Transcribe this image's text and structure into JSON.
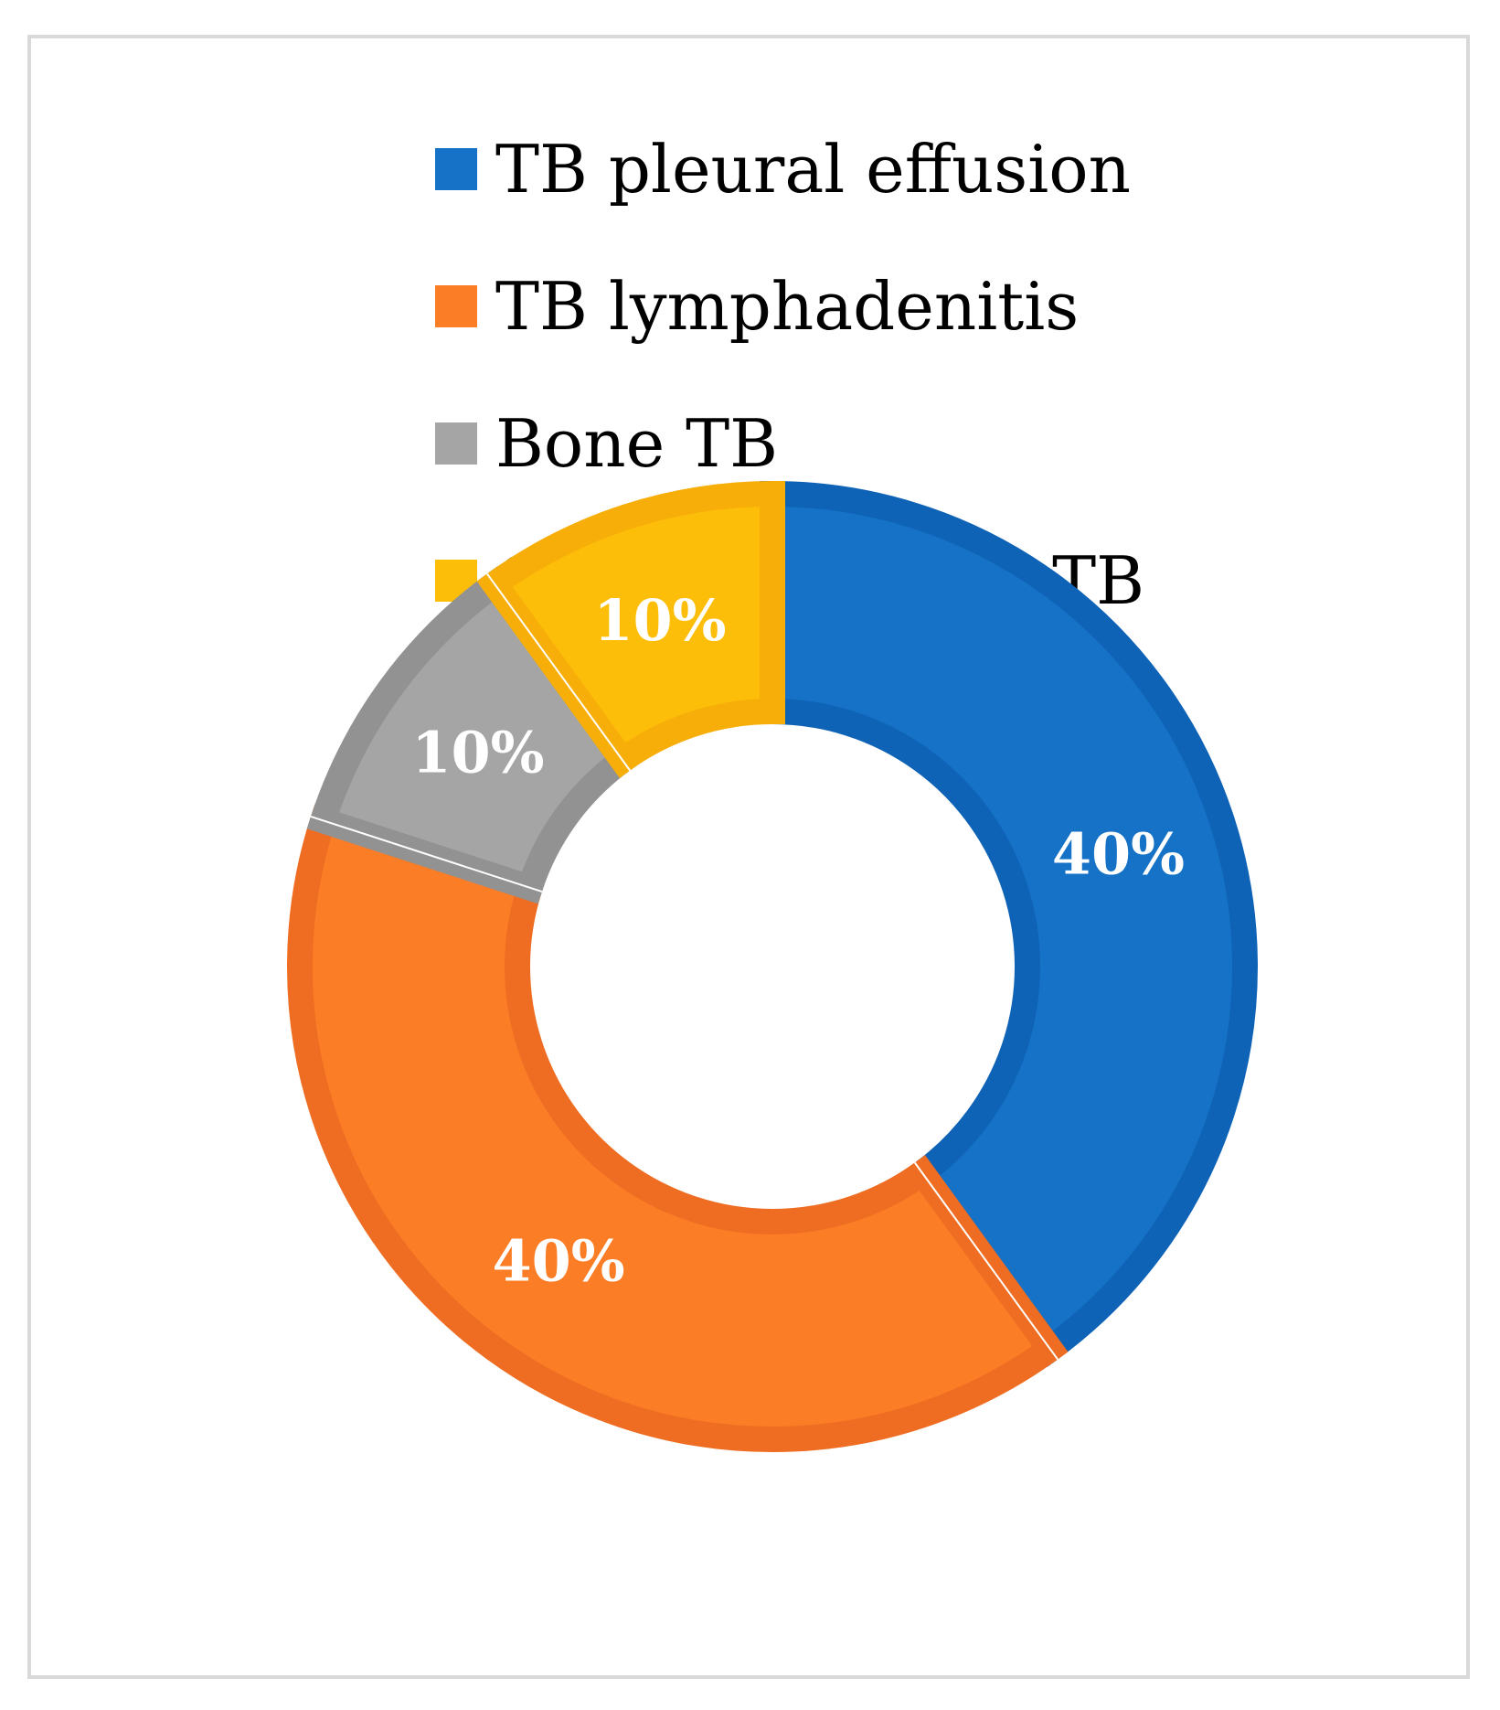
{
  "chart_data": {
    "type": "pie",
    "variant": "donut",
    "title": "",
    "categories": [
      "TB pleural effusion",
      "TB lymphadenitis",
      "Bone TB",
      "Gastrointestinal TB"
    ],
    "values": [
      40,
      40,
      10,
      10
    ],
    "value_labels": [
      "40%",
      "40%",
      "10%",
      "10%"
    ],
    "colors": [
      "#1572c6",
      "#fb7e26",
      "#a5a5a5",
      "#fdbe0a"
    ],
    "border_colors": [
      "#0f63b6",
      "#ef6d22",
      "#929292",
      "#f7ae09"
    ],
    "legend_position": "top"
  }
}
